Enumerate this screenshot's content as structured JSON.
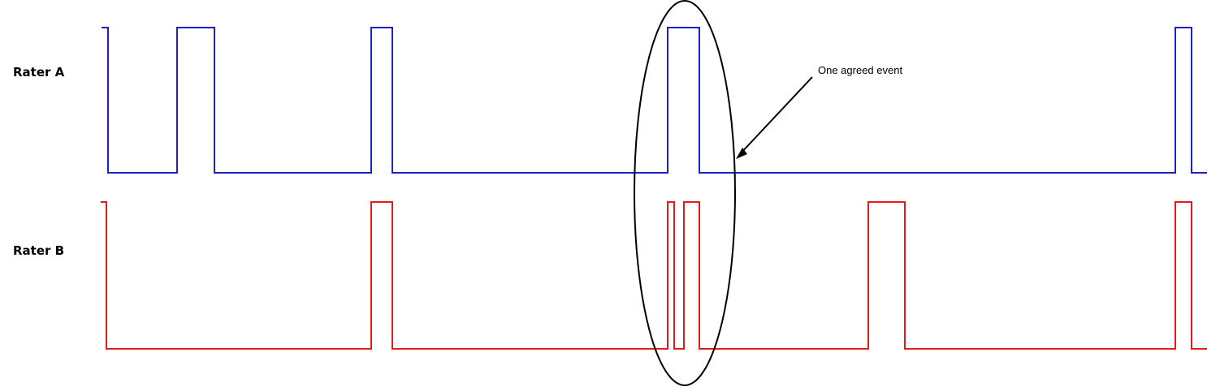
{
  "rows": [
    {
      "label": "Rater A",
      "color": "#1f1fc8"
    },
    {
      "label": "Rater B",
      "color": "#e31b1b"
    }
  ],
  "annotation": {
    "label": "One agreed event"
  }
}
